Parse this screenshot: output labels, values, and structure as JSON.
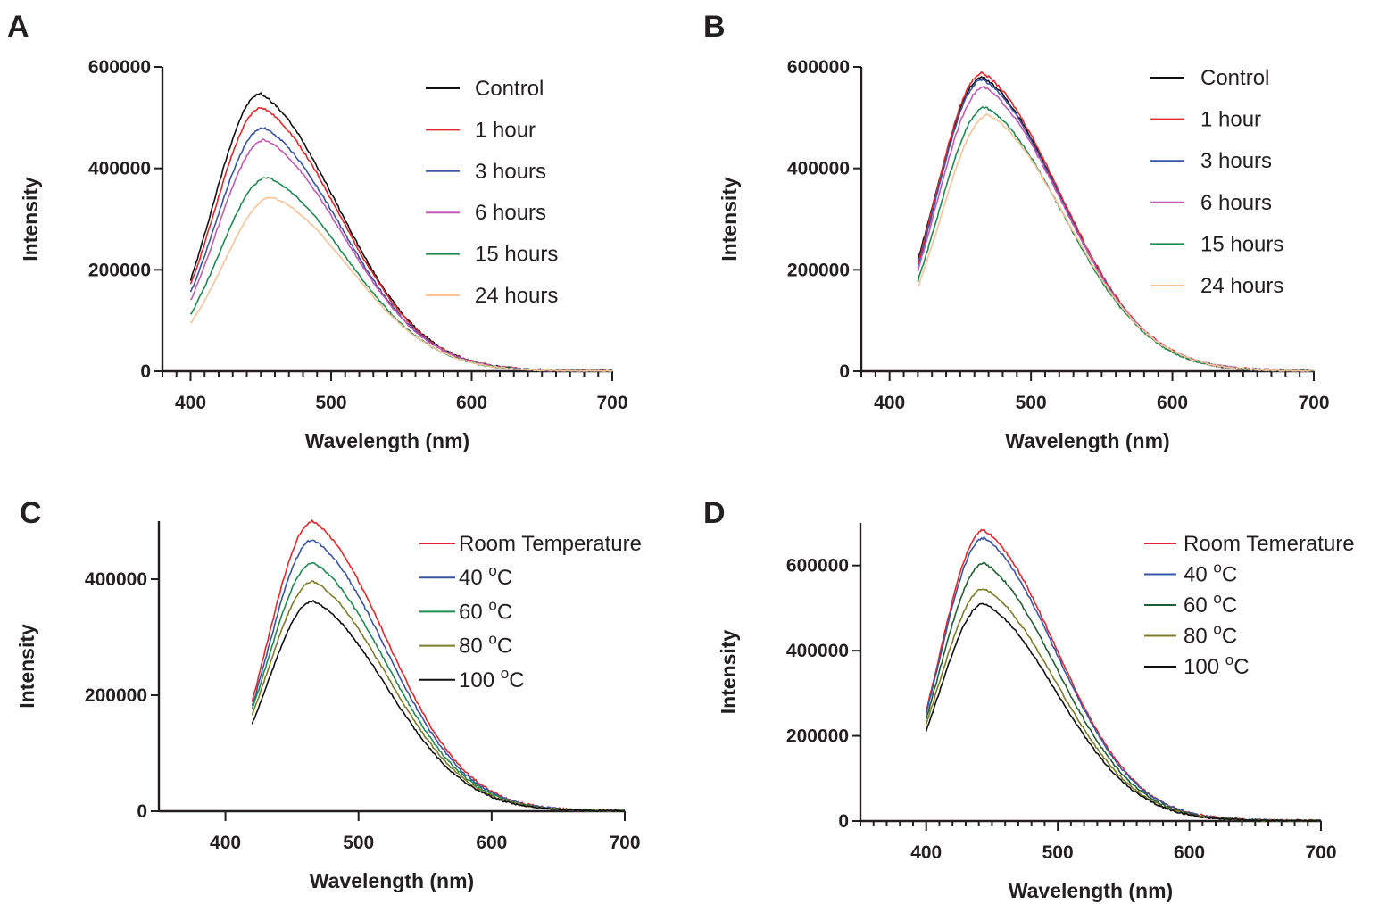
{
  "figure": {
    "panels": [
      "A",
      "B",
      "C",
      "D"
    ]
  },
  "colors": {
    "black": "#111111",
    "red": "#e3272b",
    "blue": "#3a55a4",
    "magenta": "#c45bb2",
    "green": "#1f8a52",
    "peach": "#f9c39a",
    "olive": "#7f7c2a",
    "darkgreen": "#1f5f33"
  },
  "chart_data": [
    {
      "panel": "A",
      "type": "line",
      "xlabel": "Wavelength (nm)",
      "ylabel": "Intensity",
      "xlim": [
        380,
        700
      ],
      "ylim": [
        0,
        600000
      ],
      "xticks": [
        400,
        500,
        600,
        700
      ],
      "yticks": [
        0,
        200000,
        400000,
        600000
      ],
      "x_minor_step": 10,
      "grid": false,
      "legend_placement": "top-right",
      "x_start": 400,
      "x_end": 700,
      "series": [
        {
          "name": "Control",
          "color": "#111111",
          "peak_x": 450,
          "peak_y": 547000,
          "start_y": 180000
        },
        {
          "name": "1 hour",
          "color": "#e3272b",
          "peak_x": 451,
          "peak_y": 520000,
          "start_y": 170000
        },
        {
          "name": "3 hours",
          "color": "#3a55a4",
          "peak_x": 452,
          "peak_y": 480000,
          "start_y": 155000
        },
        {
          "name": "6  hours",
          "color": "#c45bb2",
          "peak_x": 453,
          "peak_y": 456000,
          "start_y": 140000
        },
        {
          "name": "15 hours",
          "color": "#1f8a52",
          "peak_x": 455,
          "peak_y": 382000,
          "start_y": 112000
        },
        {
          "name": "24 hours",
          "color": "#f9c39a",
          "peak_x": 458,
          "peak_y": 343000,
          "start_y": 95000
        }
      ]
    },
    {
      "panel": "B",
      "type": "line",
      "xlabel": "Wavelength (nm)",
      "ylabel": "Intensity",
      "xlim": [
        380,
        700
      ],
      "ylim": [
        0,
        600000
      ],
      "xticks": [
        400,
        500,
        600,
        700
      ],
      "yticks": [
        0,
        200000,
        400000,
        600000
      ],
      "x_minor_step": 10,
      "grid": false,
      "legend_placement": "top-right",
      "x_start": 420,
      "x_end": 700,
      "series": [
        {
          "name": "Control",
          "color": "#111111",
          "peak_x": 466,
          "peak_y": 580000,
          "start_y": 220000
        },
        {
          "name": "1 hour",
          "color": "#e3272b",
          "peak_x": 466,
          "peak_y": 588000,
          "start_y": 212000
        },
        {
          "name": "3 hours",
          "color": "#3a55a4",
          "peak_x": 466,
          "peak_y": 575000,
          "start_y": 205000
        },
        {
          "name": "6 hours",
          "color": "#c45bb2",
          "peak_x": 467,
          "peak_y": 560000,
          "start_y": 198000
        },
        {
          "name": "15 hours",
          "color": "#1f8a52",
          "peak_x": 468,
          "peak_y": 520000,
          "start_y": 178000
        },
        {
          "name": "24 hours",
          "color": "#f9c39a",
          "peak_x": 470,
          "peak_y": 505000,
          "start_y": 165000
        }
      ]
    },
    {
      "panel": "C",
      "type": "line",
      "xlabel": "Wavelength (nm)",
      "ylabel": "Intensity",
      "xlim": [
        350,
        700
      ],
      "ylim": [
        0,
        500000
      ],
      "xticks": [
        400,
        500,
        600,
        700
      ],
      "yticks": [
        0,
        200000,
        400000
      ],
      "x_minor_step": 0,
      "grid": false,
      "legend_placement": "top-right",
      "x_start": 420,
      "x_end": 700,
      "series": [
        {
          "name": "Room Temperature",
          "sup": "",
          "unit": "",
          "color": "#e3272b",
          "peak_x": 466,
          "peak_y": 500000,
          "start_y": 190000
        },
        {
          "name": "40 ",
          "sup": "o",
          "unit": "C",
          "color": "#3a55a4",
          "peak_x": 466,
          "peak_y": 468000,
          "start_y": 180000
        },
        {
          "name": "60 ",
          "sup": "o",
          "unit": "C",
          "color": "#1f8a52",
          "peak_x": 466,
          "peak_y": 428000,
          "start_y": 175000
        },
        {
          "name": "80 ",
          "sup": "o",
          "unit": "C",
          "color": "#7f7c2a",
          "peak_x": 466,
          "peak_y": 396000,
          "start_y": 165000
        },
        {
          "name": "100 ",
          "sup": "o",
          "unit": "C",
          "color": "#111111",
          "peak_x": 466,
          "peak_y": 362000,
          "start_y": 150000
        }
      ]
    },
    {
      "panel": "D",
      "type": "line",
      "xlabel": "Wavelength (nm)",
      "ylabel": "Intensity",
      "xlim": [
        350,
        700
      ],
      "ylim": [
        0,
        700000
      ],
      "xticks": [
        400,
        500,
        600,
        700
      ],
      "yticks": [
        0,
        200000,
        400000,
        600000
      ],
      "x_minor_step": 10,
      "grid": false,
      "legend_placement": "top-right",
      "x_start": 400,
      "x_end": 700,
      "series": [
        {
          "name": "Room Temerature",
          "sup": "",
          "unit": "",
          "color": "#e3272b",
          "peak_x": 444,
          "peak_y": 683000,
          "start_y": 258000
        },
        {
          "name": "40 ",
          "sup": "o",
          "unit": "C",
          "color": "#3a55a4",
          "peak_x": 444,
          "peak_y": 665000,
          "start_y": 252000
        },
        {
          "name": "60 ",
          "sup": "o",
          "unit": "C",
          "color": "#1f5f33",
          "peak_x": 444,
          "peak_y": 605000,
          "start_y": 240000
        },
        {
          "name": "80 ",
          "sup": "o",
          "unit": "C",
          "color": "#7f7c2a",
          "peak_x": 444,
          "peak_y": 546000,
          "start_y": 228000
        },
        {
          "name": "100 ",
          "sup": "o",
          "unit": "C",
          "color": "#111111",
          "peak_x": 444,
          "peak_y": 510000,
          "start_y": 212000
        }
      ]
    }
  ]
}
